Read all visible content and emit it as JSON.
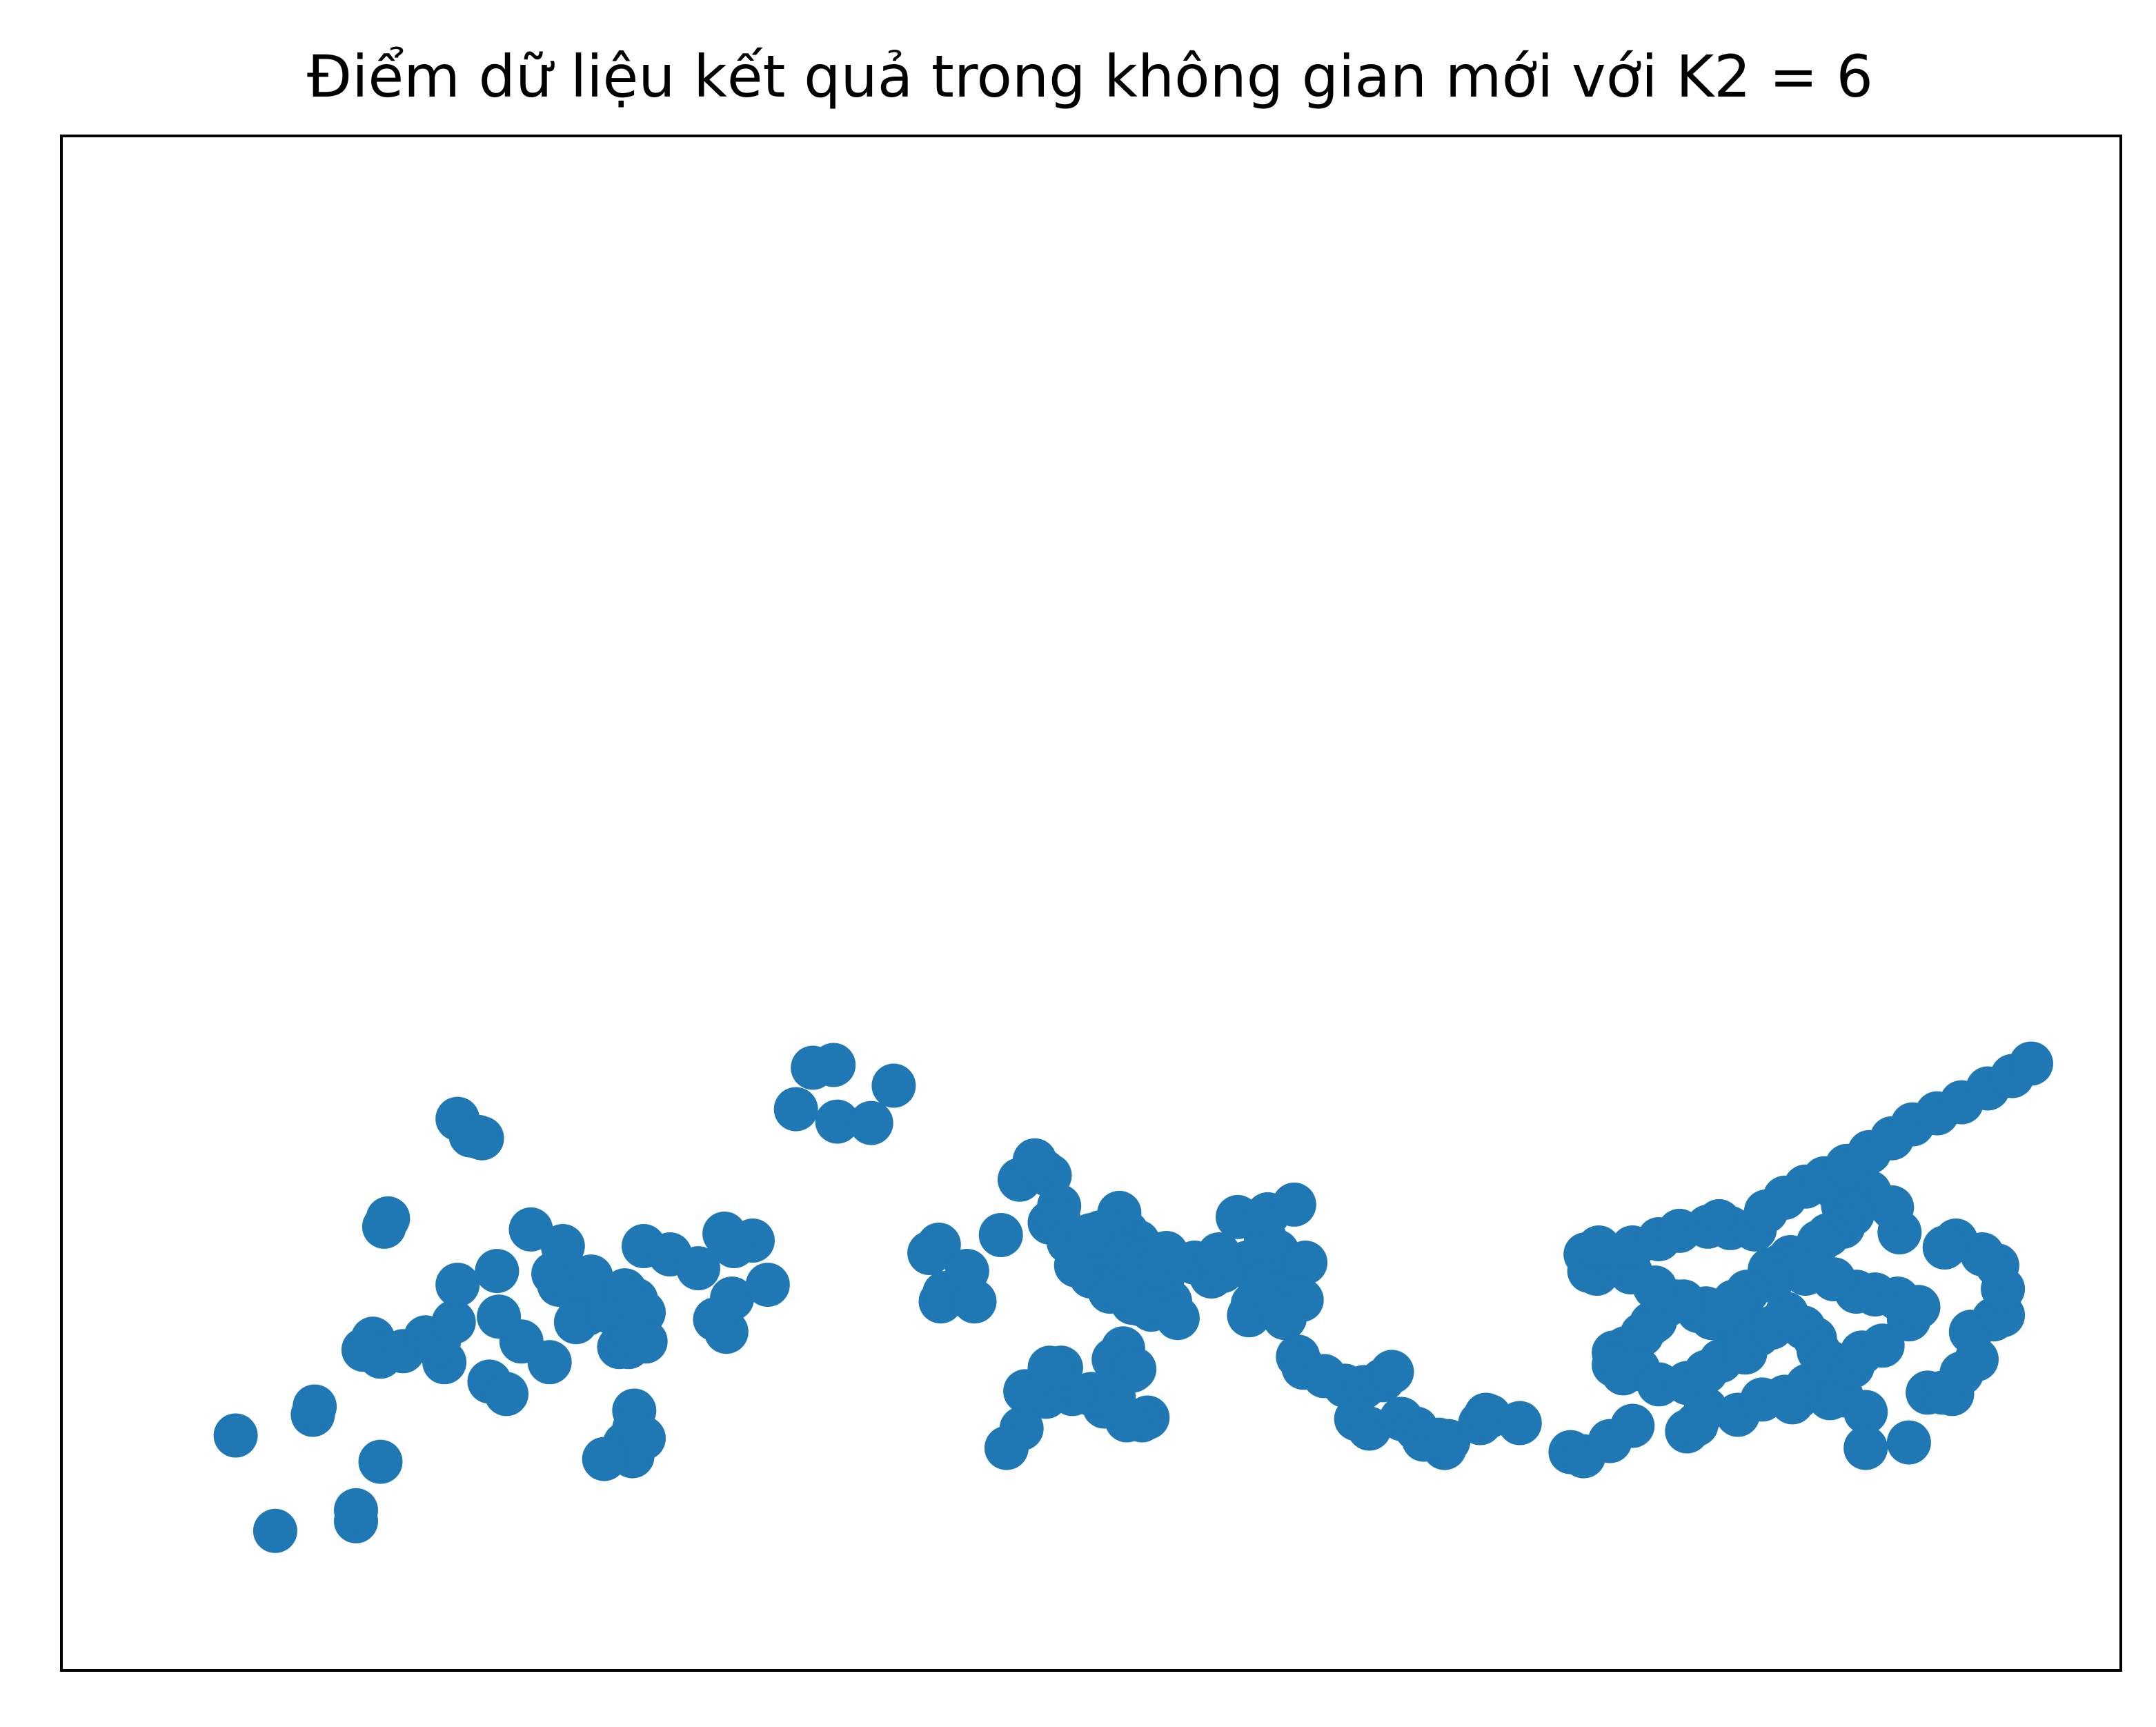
{
  "chart_data": {
    "type": "scatter",
    "title": "Điểm dữ liệu kết quả trong không gian mới với K2 = 6",
    "xlabel": "",
    "ylabel": "",
    "ticks_visible": false,
    "grid": false,
    "legend": "none",
    "marker_color": "#1f77b4",
    "xlim": [
      0,
      1000
    ],
    "ylim": [
      0,
      1000
    ],
    "points": [
      [
        45,
        115
      ],
      [
        66,
        46
      ],
      [
        86,
        130
      ],
      [
        87,
        136
      ],
      [
        109,
        53
      ],
      [
        109,
        61
      ],
      [
        122,
        96
      ],
      [
        124,
        266
      ],
      [
        126,
        272
      ],
      [
        113,
        177
      ],
      [
        118,
        185
      ],
      [
        122,
        172
      ],
      [
        134,
        176
      ],
      [
        146,
        186
      ],
      [
        156,
        168
      ],
      [
        153,
        182
      ],
      [
        161,
        197
      ],
      [
        163,
        224
      ],
      [
        184,
        234
      ],
      [
        163,
        344
      ],
      [
        170,
        332
      ],
      [
        176,
        330
      ],
      [
        174,
        331
      ],
      [
        180,
        154
      ],
      [
        189,
        145
      ],
      [
        197,
        183
      ],
      [
        185,
        201
      ],
      [
        212,
        168
      ],
      [
        202,
        264
      ],
      [
        214,
        232
      ],
      [
        217,
        224
      ],
      [
        219,
        252
      ],
      [
        227,
        216
      ],
      [
        232,
        203
      ],
      [
        226,
        197
      ],
      [
        234,
        230
      ],
      [
        243,
        205
      ],
      [
        252,
        220
      ],
      [
        258,
        213
      ],
      [
        262,
        204
      ],
      [
        249,
        179
      ],
      [
        254,
        179
      ],
      [
        257,
        188
      ],
      [
        263,
        183
      ],
      [
        257,
        133
      ],
      [
        257,
        120
      ],
      [
        252,
        109
      ],
      [
        256,
        100
      ],
      [
        262,
        113
      ],
      [
        241,
        98
      ],
      [
        262,
        252
      ],
      [
        276,
        246
      ],
      [
        291,
        236
      ],
      [
        300,
        199
      ],
      [
        306,
        190
      ],
      [
        309,
        214
      ],
      [
        320,
        256
      ],
      [
        305,
        261
      ],
      [
        310,
        252
      ],
      [
        328,
        224
      ],
      [
        343,
        351
      ],
      [
        352,
        381
      ],
      [
        363,
        383
      ],
      [
        365,
        342
      ],
      [
        383,
        341
      ],
      [
        395,
        368
      ],
      [
        419,
        253
      ],
      [
        414,
        247
      ],
      [
        434,
        234
      ],
      [
        420,
        212
      ],
      [
        422,
        218
      ],
      [
        438,
        212
      ],
      [
        434,
        234
      ],
      [
        452,
        260
      ],
      [
        462,
        300
      ],
      [
        475,
        306
      ],
      [
        478,
        303
      ],
      [
        470,
        314
      ],
      [
        483,
        281
      ],
      [
        478,
        269
      ],
      [
        483,
        270
      ],
      [
        492,
        238
      ],
      [
        488,
        255
      ],
      [
        494,
        238
      ],
      [
        500,
        230
      ],
      [
        497,
        248
      ],
      [
        493,
        242
      ],
      [
        506,
        260
      ],
      [
        512,
        267
      ],
      [
        515,
        276
      ],
      [
        519,
        262
      ],
      [
        525,
        255
      ],
      [
        526,
        248
      ],
      [
        528,
        249
      ],
      [
        525,
        237
      ],
      [
        515,
        240
      ],
      [
        530,
        237
      ],
      [
        510,
        219
      ],
      [
        522,
        211
      ],
      [
        532,
        206
      ],
      [
        542,
        212
      ],
      [
        526,
        210
      ],
      [
        515,
        229
      ],
      [
        538,
        229
      ],
      [
        528,
        236
      ],
      [
        505,
        262
      ],
      [
        500,
        260
      ],
      [
        515,
        222
      ],
      [
        517,
        178
      ],
      [
        512,
        170
      ],
      [
        522,
        162
      ],
      [
        523,
        163
      ],
      [
        530,
        128
      ],
      [
        527,
        126
      ],
      [
        519,
        126
      ],
      [
        507,
        136
      ],
      [
        512,
        143
      ],
      [
        500,
        145
      ],
      [
        490,
        145
      ],
      [
        476,
        143
      ],
      [
        484,
        164
      ],
      [
        474,
        148
      ],
      [
        463,
        120
      ],
      [
        455,
        106
      ],
      [
        465,
        147
      ],
      [
        478,
        164
      ],
      [
        518,
        245
      ],
      [
        526,
        240
      ],
      [
        537,
        238
      ],
      [
        540,
        247
      ],
      [
        546,
        200
      ],
      [
        555,
        240
      ],
      [
        564,
        230
      ],
      [
        583,
        240
      ],
      [
        584,
        202
      ],
      [
        586,
        210
      ],
      [
        590,
        223
      ],
      [
        597,
        235
      ],
      [
        599,
        248
      ],
      [
        593,
        256
      ],
      [
        570,
        234
      ],
      [
        568,
        246
      ],
      [
        578,
        273
      ],
      [
        594,
        275
      ],
      [
        608,
        282
      ],
      [
        614,
        240
      ],
      [
        612,
        213
      ],
      [
        603,
        200
      ],
      [
        610,
        172
      ],
      [
        613,
        164
      ],
      [
        624,
        158
      ],
      [
        635,
        151
      ],
      [
        645,
        150
      ],
      [
        655,
        155
      ],
      [
        660,
        161
      ],
      [
        641,
        127
      ],
      [
        648,
        120
      ],
      [
        665,
        127
      ],
      [
        673,
        120
      ],
      [
        677,
        112
      ],
      [
        688,
        106
      ],
      [
        685,
        112
      ],
      [
        690,
        111
      ],
      [
        710,
        130
      ],
      [
        707,
        124
      ],
      [
        712,
        129
      ],
      [
        728,
        124
      ],
      [
        755,
        103
      ],
      [
        762,
        100
      ],
      [
        776,
        111
      ],
      [
        788,
        122
      ],
      [
        817,
        118
      ],
      [
        822,
        123
      ],
      [
        827,
        134
      ],
      [
        844,
        130
      ],
      [
        857,
        141
      ],
      [
        869,
        143
      ],
      [
        876,
        143
      ],
      [
        873,
        139
      ],
      [
        881,
        151
      ],
      [
        893,
        142
      ],
      [
        899,
        144
      ],
      [
        912,
        132
      ],
      [
        912,
        106
      ],
      [
        935,
        110
      ],
      [
        945,
        146
      ],
      [
        953,
        146
      ],
      [
        958,
        145
      ],
      [
        963,
        160
      ],
      [
        971,
        170
      ],
      [
        968,
        190
      ],
      [
        980,
        199
      ],
      [
        985,
        202
      ],
      [
        985,
        221
      ],
      [
        982,
        238
      ],
      [
        974,
        246
      ],
      [
        960,
        256
      ],
      [
        954,
        251
      ],
      [
        930,
        262
      ],
      [
        926,
        280
      ],
      [
        914,
        291
      ],
      [
        903,
        288
      ],
      [
        897,
        292
      ],
      [
        896,
        298
      ],
      [
        900,
        281
      ],
      [
        905,
        275
      ],
      [
        900,
        266
      ],
      [
        892,
        260
      ],
      [
        887,
        255
      ],
      [
        872,
        244
      ],
      [
        867,
        238
      ],
      [
        861,
        235
      ],
      [
        844,
        209
      ],
      [
        838,
        198
      ],
      [
        830,
        200
      ],
      [
        823,
        205
      ],
      [
        827,
        207
      ],
      [
        811,
        212
      ],
      [
        806,
        209
      ],
      [
        800,
        198
      ],
      [
        798,
        196
      ],
      [
        793,
        188
      ],
      [
        784,
        178
      ],
      [
        778,
        175
      ],
      [
        778,
        166
      ],
      [
        783,
        160
      ],
      [
        791,
        163
      ],
      [
        802,
        152
      ],
      [
        817,
        153
      ],
      [
        827,
        161
      ],
      [
        835,
        169
      ],
      [
        848,
        175
      ],
      [
        855,
        188
      ],
      [
        862,
        193
      ],
      [
        870,
        203
      ],
      [
        879,
        193
      ],
      [
        885,
        185
      ],
      [
        887,
        176
      ],
      [
        893,
        168
      ],
      [
        905,
        165
      ],
      [
        910,
        175
      ],
      [
        921,
        180
      ],
      [
        935,
        199
      ],
      [
        940,
        208
      ],
      [
        929,
        214
      ],
      [
        917,
        217
      ],
      [
        907,
        219
      ],
      [
        895,
        228
      ],
      [
        880,
        232
      ],
      [
        862,
        227
      ],
      [
        849,
        219
      ],
      [
        842,
        212
      ],
      [
        832,
        205
      ],
      [
        815,
        212
      ],
      [
        800,
        222
      ],
      [
        787,
        233
      ],
      [
        778,
        239
      ],
      [
        769,
        232
      ],
      [
        765,
        234
      ],
      [
        763,
        246
      ],
      [
        770,
        251
      ],
      [
        788,
        251
      ],
      [
        802,
        257
      ],
      [
        813,
        263
      ],
      [
        828,
        266
      ],
      [
        834,
        270
      ],
      [
        840,
        265
      ],
      [
        853,
        264
      ],
      [
        859,
        277
      ],
      [
        869,
        287
      ],
      [
        880,
        295
      ],
      [
        890,
        301
      ],
      [
        902,
        310
      ],
      [
        914,
        320
      ],
      [
        926,
        330
      ],
      [
        937,
        340
      ],
      [
        950,
        348
      ],
      [
        963,
        356
      ],
      [
        977,
        366
      ],
      [
        990,
        375
      ],
      [
        1000,
        384
      ]
    ]
  }
}
